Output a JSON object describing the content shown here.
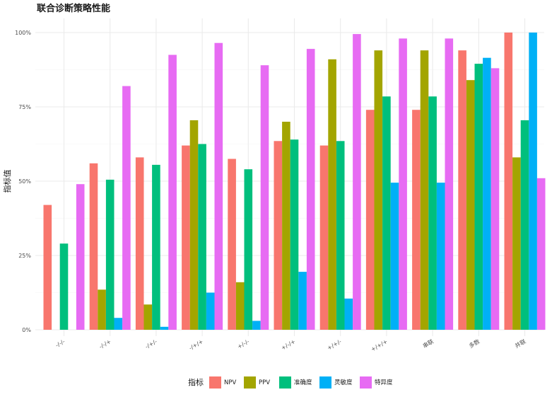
{
  "chart_data": {
    "type": "bar",
    "title": "联合诊断策略性能",
    "xlabel": "",
    "ylabel": "指标值",
    "ylim": [
      0,
      1
    ],
    "yticks": [
      0,
      0.25,
      0.5,
      0.75,
      1
    ],
    "ytick_labels": [
      "0%",
      "25%",
      "50%",
      "75%",
      "100%"
    ],
    "grid": true,
    "legend": {
      "title": "指标",
      "position": "bottom"
    },
    "categories": [
      "-/-/-",
      "-/-/+",
      "-/+/-",
      "-/+/+",
      "+/-/-",
      "+/-/+",
      "+/+/-",
      "+/+/+",
      "串联",
      "多数",
      "并联"
    ],
    "series": [
      {
        "name": "NPV",
        "color": "#F8766D",
        "values": [
          0.42,
          0.56,
          0.58,
          0.62,
          0.575,
          0.635,
          0.62,
          0.74,
          0.74,
          0.94,
          1.0
        ]
      },
      {
        "name": "PPV",
        "color": "#A3A500",
        "values": [
          0.0,
          0.135,
          0.085,
          0.705,
          0.16,
          0.7,
          0.91,
          0.94,
          0.94,
          0.84,
          0.58
        ]
      },
      {
        "name": "准确度",
        "color": "#00BF7D",
        "values": [
          0.29,
          0.505,
          0.555,
          0.625,
          0.54,
          0.64,
          0.635,
          0.785,
          0.785,
          0.895,
          0.705
        ]
      },
      {
        "name": "灵敏度",
        "color": "#00B0F6",
        "values": [
          0.0,
          0.04,
          0.01,
          0.125,
          0.03,
          0.195,
          0.105,
          0.495,
          0.495,
          0.915,
          1.0
        ]
      },
      {
        "name": "特异度",
        "color": "#E76BF3",
        "values": [
          0.49,
          0.82,
          0.925,
          0.965,
          0.89,
          0.945,
          0.995,
          0.98,
          0.98,
          0.88,
          0.51
        ]
      }
    ]
  }
}
